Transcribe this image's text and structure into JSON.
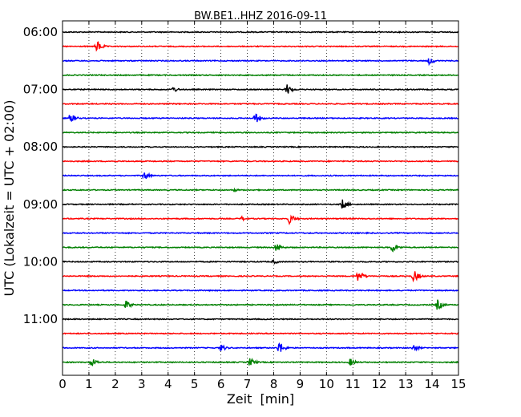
{
  "chart_data": {
    "type": "line",
    "title": "BW.BE1..HHZ 2016-09-11",
    "xlabel": "Zeit  [min]",
    "ylabel": "UTC (Lokalzeit = UTC + 02:00)",
    "xlim": [
      0,
      15
    ],
    "x_ticks": [
      0,
      1,
      2,
      3,
      4,
      5,
      6,
      7,
      8,
      9,
      10,
      11,
      12,
      13,
      14,
      15
    ],
    "y_tick_labels": [
      "06:00",
      "07:00",
      "08:00",
      "09:00",
      "10:00",
      "11:00"
    ],
    "grid": "vertical dotted",
    "color_cycle": [
      "#000000",
      "#ff0000",
      "#0000ff",
      "#008000"
    ],
    "rows": [
      {
        "start": "06:00",
        "color": "#000000",
        "events": []
      },
      {
        "start": "06:15",
        "color": "#ff0000",
        "events": [
          {
            "t": 1.3,
            "amp": 8
          }
        ]
      },
      {
        "start": "06:30",
        "color": "#0000ff",
        "events": [
          {
            "t": 13.9,
            "amp": 5
          }
        ]
      },
      {
        "start": "06:45",
        "color": "#008000",
        "events": []
      },
      {
        "start": "07:00",
        "color": "#000000",
        "events": [
          {
            "t": 4.2,
            "amp": 4
          },
          {
            "t": 8.5,
            "amp": 7
          }
        ]
      },
      {
        "start": "07:15",
        "color": "#ff0000",
        "events": []
      },
      {
        "start": "07:30",
        "color": "#0000ff",
        "events": [
          {
            "t": 0.3,
            "amp": 7
          },
          {
            "t": 7.3,
            "amp": 7
          }
        ]
      },
      {
        "start": "07:45",
        "color": "#008000",
        "events": []
      },
      {
        "start": "08:00",
        "color": "#000000",
        "events": []
      },
      {
        "start": "08:15",
        "color": "#ff0000",
        "events": []
      },
      {
        "start": "08:30",
        "color": "#0000ff",
        "events": [
          {
            "t": 3.1,
            "amp": 6
          }
        ]
      },
      {
        "start": "08:45",
        "color": "#008000",
        "events": [
          {
            "t": 6.5,
            "amp": 2
          }
        ]
      },
      {
        "start": "09:00",
        "color": "#000000",
        "events": [
          {
            "t": 10.6,
            "amp": 7
          }
        ]
      },
      {
        "start": "09:15",
        "color": "#ff0000",
        "events": [
          {
            "t": 6.8,
            "amp": 3
          },
          {
            "t": 8.6,
            "amp": 7
          }
        ]
      },
      {
        "start": "09:30",
        "color": "#0000ff",
        "events": []
      },
      {
        "start": "09:45",
        "color": "#008000",
        "events": [
          {
            "t": 8.1,
            "amp": 7
          },
          {
            "t": 12.5,
            "amp": 7
          }
        ]
      },
      {
        "start": "10:00",
        "color": "#000000",
        "events": [
          {
            "t": 8.0,
            "amp": 3
          }
        ]
      },
      {
        "start": "10:15",
        "color": "#ff0000",
        "events": [
          {
            "t": 11.2,
            "amp": 8
          },
          {
            "t": 13.3,
            "amp": 8
          }
        ]
      },
      {
        "start": "10:30",
        "color": "#0000ff",
        "events": []
      },
      {
        "start": "10:45",
        "color": "#008000",
        "events": [
          {
            "t": 2.4,
            "amp": 6
          },
          {
            "t": 14.2,
            "amp": 7
          }
        ]
      },
      {
        "start": "11:00",
        "color": "#000000",
        "events": []
      },
      {
        "start": "11:15",
        "color": "#ff0000",
        "events": []
      },
      {
        "start": "11:30",
        "color": "#0000ff",
        "events": [
          {
            "t": 6.0,
            "amp": 5
          },
          {
            "t": 8.2,
            "amp": 9
          },
          {
            "t": 13.3,
            "amp": 5
          }
        ]
      },
      {
        "start": "11:45",
        "color": "#008000",
        "events": [
          {
            "t": 1.1,
            "amp": 6
          },
          {
            "t": 7.1,
            "amp": 6
          },
          {
            "t": 10.9,
            "amp": 5
          }
        ]
      }
    ]
  }
}
